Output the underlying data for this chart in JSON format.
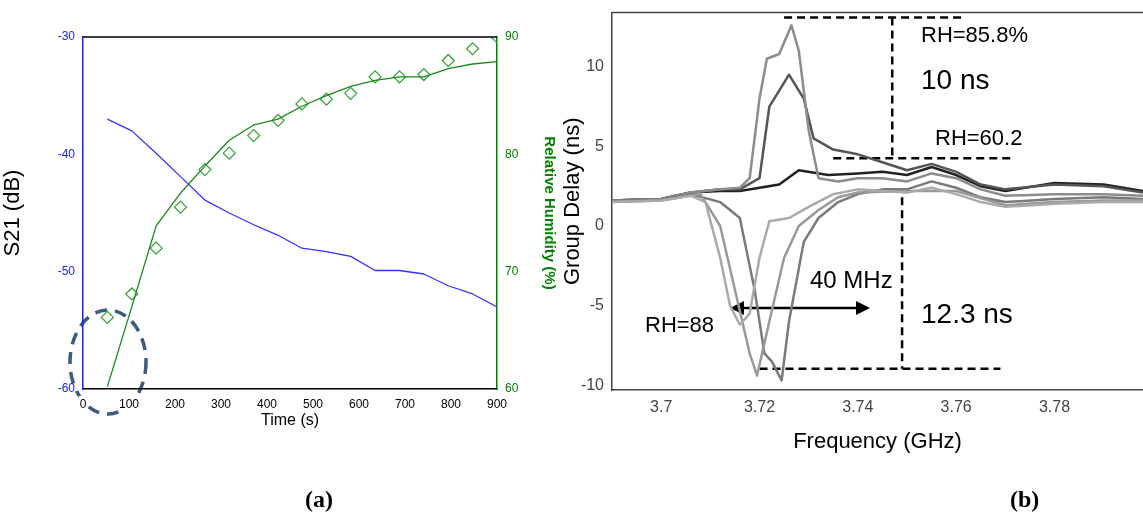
{
  "chart_data": [
    {
      "type": "line",
      "xlabel": "Time (s)",
      "ylabel": "S21 (dB)",
      "y2label": "Relative Humidity (%)",
      "x": [
        53,
        106,
        159,
        212,
        265,
        318,
        371,
        424,
        476,
        529,
        582,
        635,
        688,
        741,
        794,
        847,
        900
      ],
      "series": [
        {
          "color": "#3333ff",
          "marker": "none",
          "values": [
            -37,
            -38,
            -39.9,
            -41.9,
            -43.9,
            -45,
            -46,
            -46.9,
            -48,
            -48.3,
            -48.7,
            -49.9,
            -49.9,
            -50.2,
            -51.2,
            -51.9,
            -53
          ]
        },
        {
          "color": "#1a8a1a",
          "marker": "none",
          "axis": "y2",
          "values": [
            60.2,
            67,
            73.9,
            76.7,
            79,
            81.2,
            82.5,
            83,
            84.1,
            85,
            85.8,
            86.3,
            86.6,
            86.6,
            87.3,
            87.7,
            87.9
          ]
        },
        {
          "type": "scatter",
          "color": "#33a033",
          "marker": "diamond",
          "axis": "y2",
          "values": [
            66.1,
            68.1,
            72,
            75.5,
            78.7,
            80.1,
            81.6,
            82.9,
            84.3,
            84.7,
            85.2,
            86.6,
            86.6,
            86.8,
            88,
            89,
            90
          ]
        }
      ],
      "xlim": [
        0,
        900
      ],
      "xticks": [
        0,
        100,
        200,
        300,
        400,
        500,
        600,
        700,
        800,
        900
      ],
      "ylim": [
        -60,
        -30
      ],
      "yticks": [
        -60,
        -50,
        -40,
        -30
      ],
      "y2lim": [
        60,
        90
      ],
      "y2ticks": [
        60,
        70,
        80,
        90
      ],
      "annotations": [
        "(a)"
      ],
      "grid": false,
      "legend": false
    },
    {
      "type": "line",
      "xlabel": "Frequency (GHz)",
      "ylabel": "Group Delay (ns)",
      "series": [
        {
          "color": "#aaaaaa",
          "x": [
            3.69,
            3.7,
            3.706,
            3.709,
            3.712,
            3.714,
            3.716,
            3.718,
            3.72,
            3.722,
            3.726,
            3.73,
            3.735,
            3.74,
            3.745,
            3.75,
            3.755,
            3.76,
            3.765,
            3.77,
            3.78,
            3.79,
            3.798
          ],
          "values": [
            1.5,
            1.6,
            1.9,
            1.5,
            -2,
            -5,
            -6.2,
            -5.5,
            -2,
            0.3,
            0.5,
            1.2,
            2,
            2.3,
            2.2,
            2.1,
            2.4,
            2,
            1.5,
            1.2,
            1.4,
            1.5,
            1.5
          ]
        },
        {
          "color": "#999999",
          "x": [
            3.69,
            3.7,
            3.708,
            3.712,
            3.715,
            3.718,
            3.7195,
            3.722,
            3.725,
            3.728,
            3.732,
            3.736,
            3.74,
            3.75,
            3.76,
            3.77,
            3.78,
            3.79,
            3.798
          ],
          "values": [
            1.5,
            1.6,
            2,
            0,
            -4,
            -8,
            -9.4,
            -6,
            -2,
            0,
            1,
            1.8,
            2.1,
            2.2,
            2.2,
            1.3,
            1.5,
            1.6,
            1.6
          ]
        },
        {
          "color": "#7a7a7a",
          "x": [
            3.69,
            3.7,
            3.706,
            3.712,
            3.716,
            3.719,
            3.721,
            3.7225,
            3.7245,
            3.726,
            3.729,
            3.732,
            3.736,
            3.74,
            3.745,
            3.75,
            3.755,
            3.76,
            3.765,
            3.77,
            3.78,
            3.79,
            3.798
          ],
          "values": [
            1.6,
            1.7,
            2,
            1.5,
            0.5,
            -4,
            -8,
            -8.5,
            -9.7,
            -6,
            -1,
            0.5,
            1.5,
            2,
            2.3,
            2.3,
            2.8,
            2.4,
            1.8,
            1.5,
            1.7,
            1.8,
            1.7
          ]
        },
        {
          "color": "#8c8c8c",
          "x": [
            3.69,
            3.7,
            3.706,
            3.712,
            3.716,
            3.718,
            3.72,
            3.7215,
            3.724,
            3.7265,
            3.728,
            3.73,
            3.732,
            3.736,
            3.74,
            3.745,
            3.75,
            3.755,
            3.76,
            3.765,
            3.77,
            3.78,
            3.79,
            3.798
          ],
          "values": [
            1.6,
            1.7,
            2.1,
            2.3,
            2.4,
            3,
            8,
            10.5,
            10.8,
            12.6,
            11,
            6,
            3,
            2.8,
            3,
            3,
            2.8,
            3.3,
            3,
            2.3,
            1.9,
            2,
            2,
            1.9
          ]
        },
        {
          "color": "#555555",
          "x": [
            3.69,
            3.7,
            3.706,
            3.712,
            3.716,
            3.72,
            3.722,
            3.726,
            3.729,
            3.731,
            3.735,
            3.74,
            3.745,
            3.75,
            3.755,
            3.76,
            3.765,
            3.77,
            3.78,
            3.79,
            3.798
          ],
          "values": [
            1.6,
            1.7,
            2.1,
            2.3,
            2.3,
            3,
            7.5,
            9.5,
            8,
            5.5,
            4.8,
            4.5,
            4,
            3.5,
            3.9,
            3.4,
            2.6,
            2.3,
            2.6,
            2.5,
            2.1
          ]
        },
        {
          "color": "#222222",
          "x": [
            3.69,
            3.7,
            3.706,
            3.712,
            3.716,
            3.724,
            3.728,
            3.734,
            3.74,
            3.745,
            3.75,
            3.755,
            3.76,
            3.765,
            3.77,
            3.78,
            3.79,
            3.798
          ],
          "values": [
            1.6,
            1.7,
            2.1,
            2.2,
            2.2,
            2.6,
            3.5,
            3.2,
            3.3,
            3.4,
            3.2,
            3.7,
            3.2,
            2.5,
            2.2,
            2.7,
            2.6,
            2.2
          ]
        },
        {
          "color": "#000000",
          "line_style": "dashed",
          "x": [
            3.725,
            3.761,
            null,
            3.747,
            3.747,
            null,
            3.735,
            3.771
          ],
          "values": [
            13.1,
            13.1,
            null,
            13.1,
            4.25,
            null,
            4.25,
            4.25
          ]
        },
        {
          "color": "#000000",
          "line_style": "dashed",
          "x": [
            3.749,
            3.749,
            null,
            3.72,
            3.769
          ],
          "values": [
            1.8,
            -8.97,
            null,
            -8.97,
            -8.97
          ]
        }
      ],
      "xlim": [
        3.69,
        3.798
      ],
      "xticks": [
        3.7,
        3.72,
        3.74,
        3.76,
        3.78
      ],
      "ylim": [
        -10.3,
        13.4
      ],
      "yticks": [
        -10,
        -5,
        0,
        5,
        10
      ],
      "annotations": [
        "RH=85.8%",
        "10 ns",
        "RH=60.2",
        "12.3 ns",
        "40 MHz",
        "RH=88",
        "(b)"
      ],
      "grid": false,
      "legend": false
    }
  ]
}
